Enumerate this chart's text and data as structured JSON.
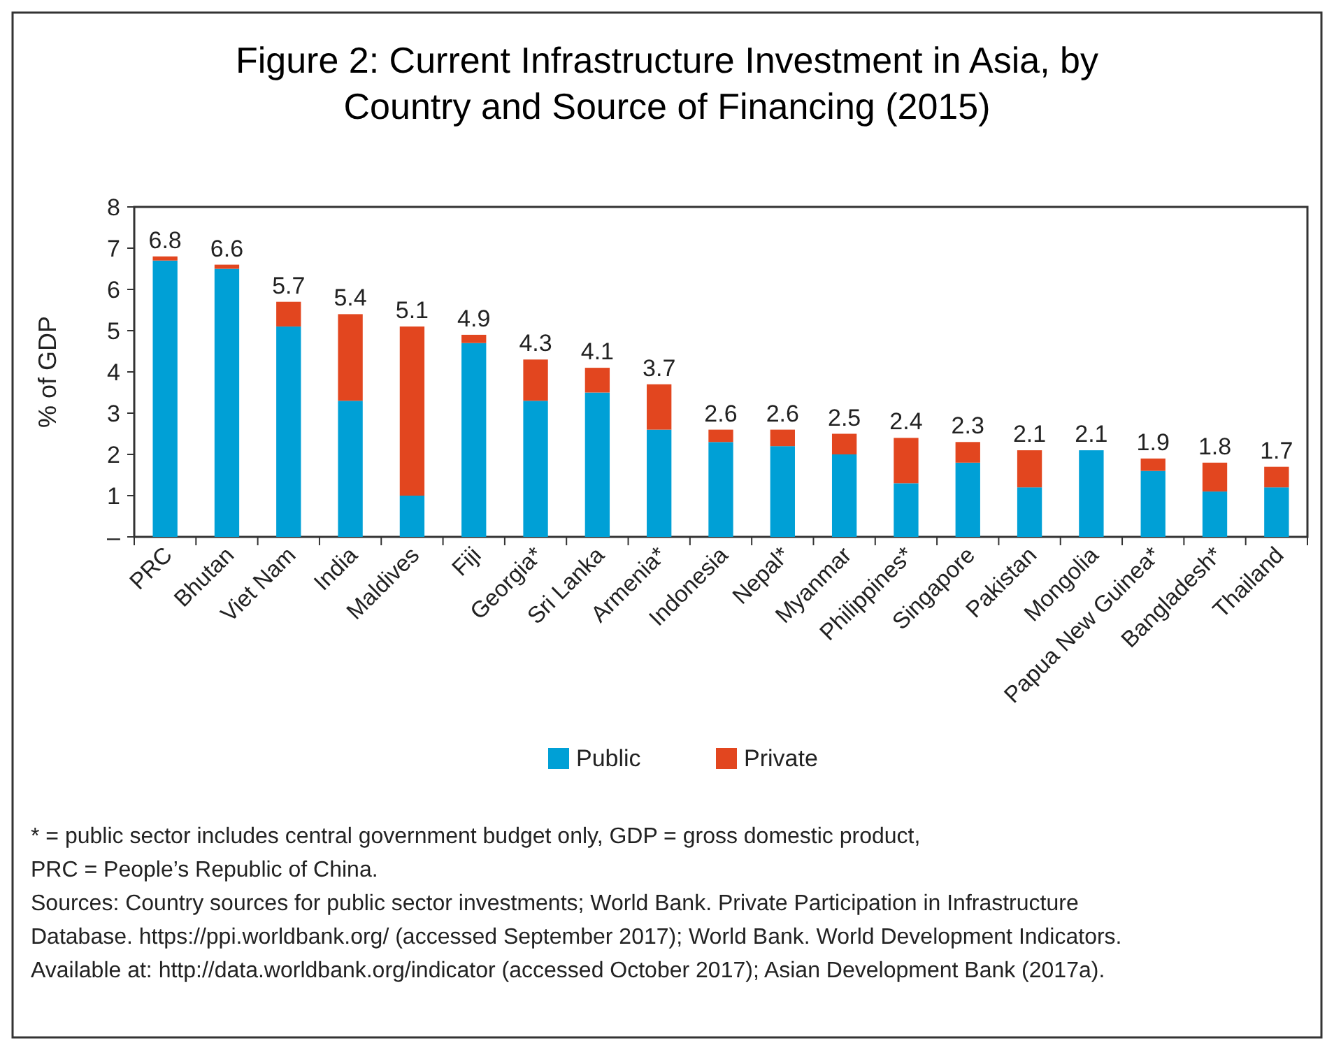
{
  "chart_data": {
    "type": "bar",
    "title": "Figure 2: Current Infrastructure Investment in Asia, by Country and Source of Financing (2015)",
    "ylabel": "% of GDP",
    "categories": [
      "PRC",
      "Bhutan",
      "Viet Nam",
      "India",
      "Maldives",
      "Fiji",
      "Georgia*",
      "Sri Lanka",
      "Armenia*",
      "Indonesia",
      "Nepal*",
      "Myanmar",
      "Philippines*",
      "Singapore",
      "Pakistan",
      "Mongolia",
      "Papua New Guinea*",
      "Bangladesh*",
      "Thailand"
    ],
    "stacked": true,
    "series": [
      {
        "name": "Public",
        "color": "#00a0d6",
        "values": [
          6.7,
          6.5,
          5.1,
          3.3,
          1.0,
          4.7,
          3.3,
          3.5,
          2.6,
          2.3,
          2.2,
          2.0,
          1.3,
          1.8,
          1.2,
          2.1,
          1.6,
          1.1,
          1.2
        ]
      },
      {
        "name": "Private",
        "color": "#e2461f",
        "values": [
          0.1,
          0.1,
          0.6,
          2.1,
          4.1,
          0.2,
          1.0,
          0.6,
          1.1,
          0.3,
          0.4,
          0.5,
          1.1,
          0.5,
          0.9,
          0.0,
          0.3,
          0.7,
          0.5
        ]
      }
    ],
    "totals": [
      "6.8",
      "6.6",
      "5.7",
      "5.4",
      "5.1",
      "4.9",
      "4.3",
      "4.1",
      "3.7",
      "2.6",
      "2.6",
      "2.5",
      "2.4",
      "2.3",
      "2.1",
      "2.1",
      "1.9",
      "1.8",
      "1.7"
    ],
    "ylim": [
      0,
      8
    ],
    "yticks": [
      {
        "value": 0,
        "label": "–"
      },
      1,
      2,
      3,
      4,
      5,
      6,
      7,
      8
    ],
    "legend": "bottom",
    "annotations": [
      "* = public sector includes central government budget only, GDP = gross domestic product,",
      "PRC = People’s Republic of China.",
      "Sources: Country sources for public sector investments; World Bank. Private Participation in Infrastructure Database. https://ppi.worldbank.org/ (accessed September 2017); World Bank. World Development Indicators. Available at: http://data.worldbank.org/indicator (accessed October 2017); Asian Development Bank (2017a)."
    ]
  }
}
